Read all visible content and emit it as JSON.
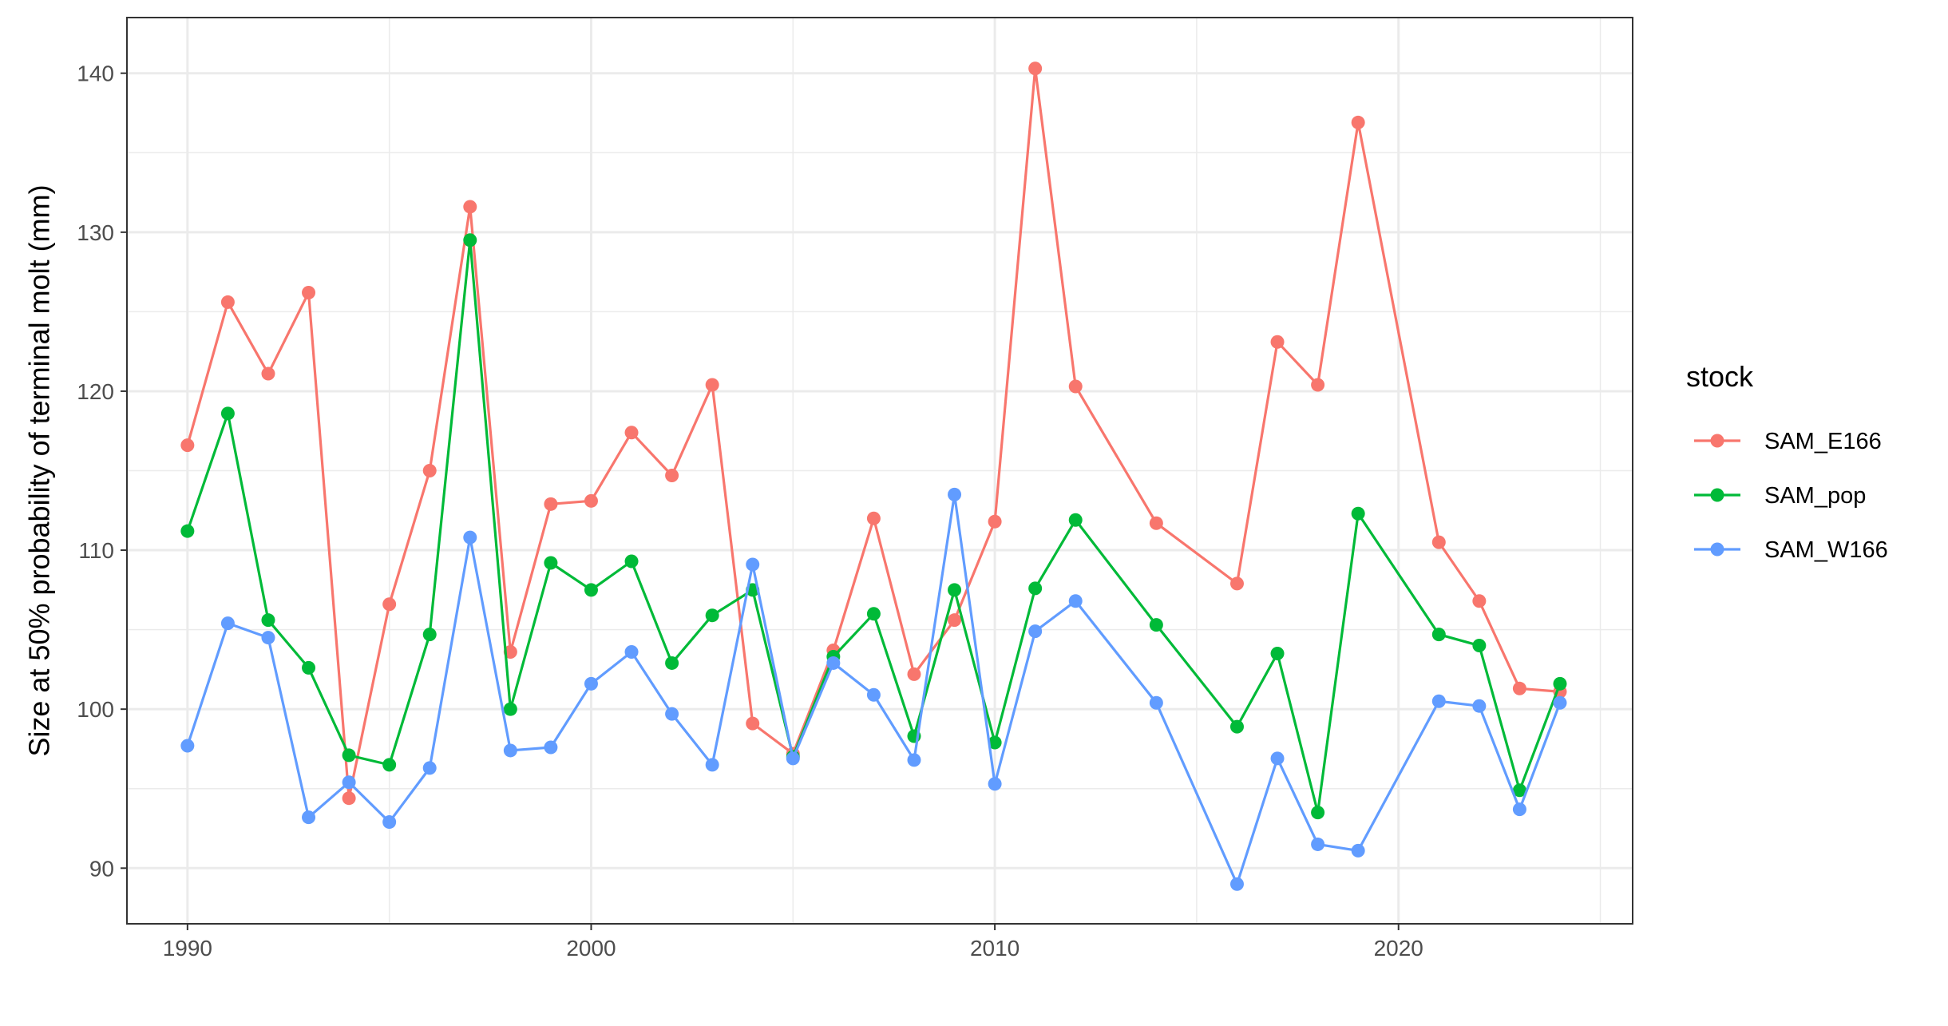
{
  "chart_data": {
    "type": "line",
    "ylabel": "Size at 50% probability of terminal molt (mm)",
    "xlabel": "",
    "xlim": [
      1988.5,
      2025.8
    ],
    "ylim": [
      86.5,
      143.5
    ],
    "x_ticks": [
      1990,
      2000,
      2010,
      2020
    ],
    "x_minor_ticks": [
      1995,
      2005,
      2015,
      2025
    ],
    "y_ticks": [
      90,
      100,
      110,
      120,
      130,
      140
    ],
    "y_minor_ticks": [
      95,
      105,
      115,
      125,
      135
    ],
    "grid": true,
    "legend": {
      "title": "stock",
      "position": "right"
    },
    "series": [
      {
        "name": "SAM_E166",
        "color": "#F8766D",
        "x": [
          1990,
          1991,
          1992,
          1993,
          1994,
          1995,
          1996,
          1997,
          1998,
          1999,
          2000,
          2001,
          2002,
          2003,
          2004,
          2005,
          2006,
          2007,
          2008,
          2009,
          2010,
          2011,
          2012,
          2014,
          2016,
          2017,
          2018,
          2019,
          2021,
          2022,
          2023,
          2024
        ],
        "y": [
          116.6,
          125.6,
          121.1,
          126.2,
          94.4,
          106.6,
          115.0,
          131.6,
          103.6,
          112.9,
          113.1,
          117.4,
          114.7,
          120.4,
          99.1,
          97.2,
          103.7,
          112.0,
          102.2,
          105.6,
          111.8,
          140.3,
          120.3,
          111.7,
          107.9,
          123.1,
          120.4,
          136.9,
          110.5,
          106.8,
          101.3,
          101.1
        ]
      },
      {
        "name": "SAM_pop",
        "color": "#00BA38",
        "x": [
          1990,
          1991,
          1992,
          1993,
          1994,
          1995,
          1996,
          1997,
          1998,
          1999,
          2000,
          2001,
          2002,
          2003,
          2004,
          2005,
          2006,
          2007,
          2008,
          2009,
          2010,
          2011,
          2012,
          2014,
          2016,
          2017,
          2018,
          2019,
          2021,
          2022,
          2023,
          2024
        ],
        "y": [
          111.2,
          118.6,
          105.6,
          102.6,
          97.1,
          96.5,
          104.7,
          129.5,
          100.0,
          109.2,
          107.5,
          109.3,
          102.9,
          105.9,
          107.5,
          97.0,
          103.3,
          106.0,
          98.3,
          107.5,
          97.9,
          107.6,
          111.9,
          105.3,
          98.9,
          103.5,
          93.5,
          112.3,
          104.7,
          104.0,
          94.9,
          101.6
        ]
      },
      {
        "name": "SAM_W166",
        "color": "#619CFF",
        "x": [
          1990,
          1991,
          1992,
          1993,
          1994,
          1995,
          1996,
          1997,
          1998,
          1999,
          2000,
          2001,
          2002,
          2003,
          2004,
          2005,
          2006,
          2007,
          2008,
          2009,
          2010,
          2011,
          2012,
          2014,
          2016,
          2017,
          2018,
          2019,
          2021,
          2022,
          2023,
          2024
        ],
        "y": [
          97.7,
          105.4,
          104.5,
          93.2,
          95.4,
          92.9,
          96.3,
          110.8,
          97.4,
          97.6,
          101.6,
          103.6,
          99.7,
          96.5,
          109.1,
          96.9,
          102.9,
          100.9,
          96.8,
          113.5,
          95.3,
          104.9,
          106.8,
          100.4,
          89.0,
          96.9,
          91.5,
          91.1,
          100.5,
          100.2,
          93.7,
          100.4
        ]
      }
    ]
  }
}
